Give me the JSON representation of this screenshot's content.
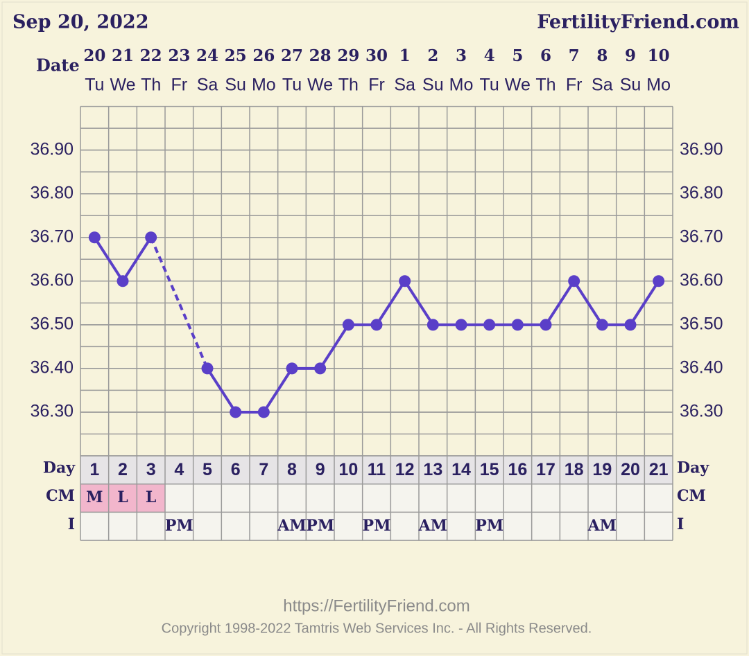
{
  "chart_data": {
    "type": "line",
    "title": "Sep 20, 2022",
    "site": "FertilityFriend.com",
    "date_label": "Date",
    "day_label": "Day",
    "cm_label": "CM",
    "i_label": "I",
    "categories": [
      "20",
      "21",
      "22",
      "23",
      "24",
      "25",
      "26",
      "27",
      "28",
      "29",
      "30",
      "1",
      "2",
      "3",
      "4",
      "5",
      "6",
      "7",
      "8",
      "9",
      "10"
    ],
    "weekdays": [
      "Tu",
      "We",
      "Th",
      "Fr",
      "Sa",
      "Su",
      "Mo",
      "Tu",
      "We",
      "Th",
      "Fr",
      "Sa",
      "Su",
      "Mo",
      "Tu",
      "We",
      "Th",
      "Fr",
      "Sa",
      "Su",
      "Mo"
    ],
    "days": [
      1,
      2,
      3,
      4,
      5,
      6,
      7,
      8,
      9,
      10,
      11,
      12,
      13,
      14,
      15,
      16,
      17,
      18,
      19,
      20,
      21
    ],
    "cm": [
      "M",
      "L",
      "L",
      null,
      null,
      null,
      null,
      null,
      null,
      null,
      null,
      null,
      null,
      null,
      null,
      null,
      null,
      null,
      null,
      null,
      null
    ],
    "i": [
      null,
      null,
      null,
      "PM",
      null,
      null,
      null,
      "AM",
      "PM",
      null,
      "PM",
      null,
      "AM",
      null,
      "PM",
      null,
      null,
      null,
      "AM",
      null,
      null
    ],
    "values": [
      36.7,
      36.6,
      36.7,
      null,
      36.4,
      36.3,
      36.3,
      36.4,
      36.4,
      36.5,
      36.5,
      36.6,
      36.5,
      36.5,
      36.5,
      36.5,
      36.5,
      36.6,
      36.5,
      36.5,
      36.6
    ],
    "color": "#5a3fc8",
    "gap_style": "dashed",
    "ylim": [
      36.2,
      37.0
    ],
    "yticks": [
      {
        "value": 36.3,
        "label": "36.30"
      },
      {
        "value": 36.4,
        "label": "36.40"
      },
      {
        "value": 36.5,
        "label": "36.50"
      },
      {
        "value": 36.6,
        "label": "36.60"
      },
      {
        "value": 36.7,
        "label": "36.70"
      },
      {
        "value": 36.8,
        "label": "36.80"
      },
      {
        "value": 36.9,
        "label": "36.90"
      }
    ],
    "grid": true,
    "footer_url": "https://FertilityFriend.com",
    "copyright": "Copyright 1998-2022 Tamtris Web Services Inc. - All Rights Reserved."
  }
}
